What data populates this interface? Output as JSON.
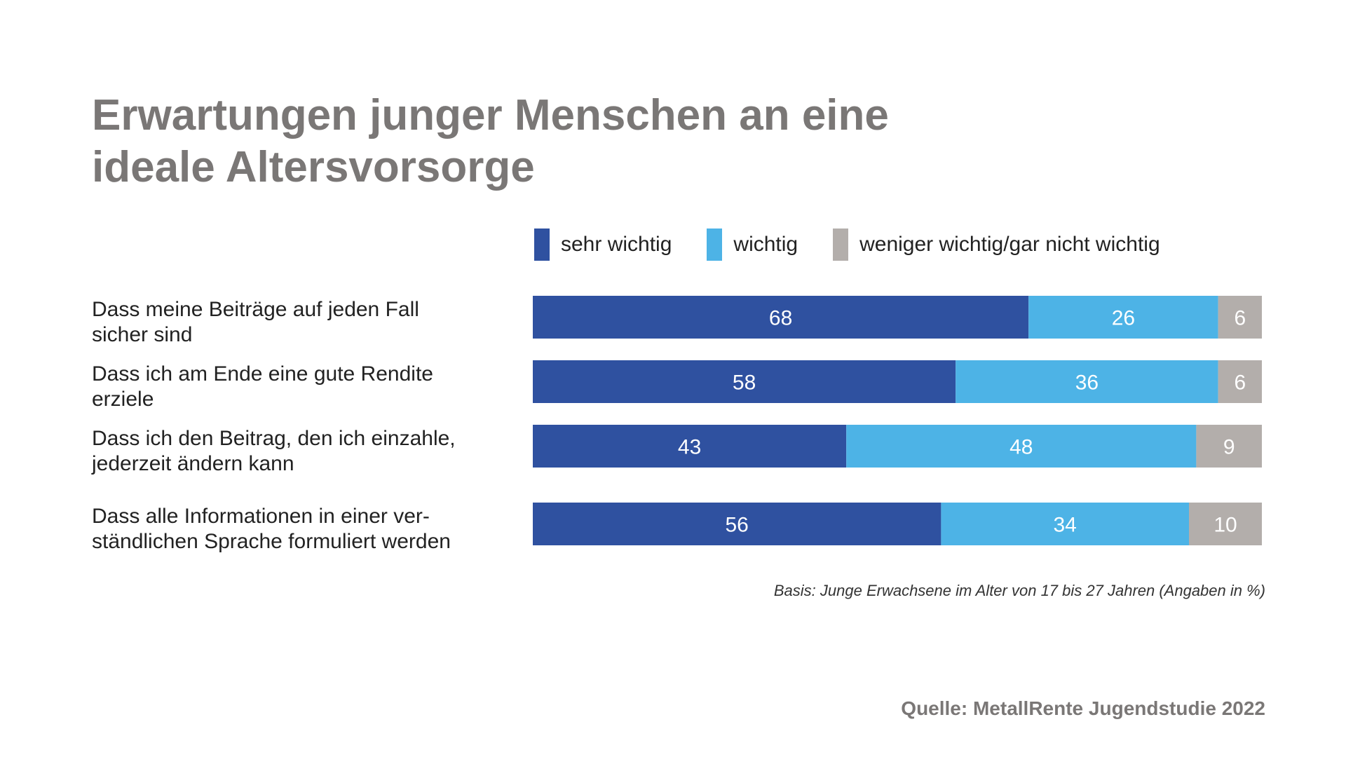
{
  "title_lines": [
    "Erwartungen junger Menschen an eine",
    "ideale Altersvorsorge"
  ],
  "legend": [
    {
      "label": "sehr wichtig",
      "color": "#2f51a0"
    },
    {
      "label": "wichtig",
      "color": "#4db3e6"
    },
    {
      "label": "weniger wichtig/gar nicht wichtig",
      "color": "#b3aeab"
    }
  ],
  "basis_note": "Basis: Junge Erwachsene im Alter von 17 bis 27 Jahren (Angaben in %)",
  "source_note": "Quelle: MetallRente Jugendstudie 2022",
  "chart_data": {
    "type": "bar",
    "orientation": "horizontal",
    "stacked": true,
    "title": "Erwartungen junger Menschen an eine ideale Altersvorsorge",
    "xlim": [
      0,
      100
    ],
    "grid": false,
    "legend_position": "top",
    "categories": [
      [
        "Dass meine Beiträge auf jeden Fall",
        "sicher sind"
      ],
      [
        "Dass ich am Ende eine gute Rendite",
        "erziele"
      ],
      [
        "Dass ich den Beitrag, den ich einzahle,",
        "jederzeit ändern kann"
      ],
      [
        "Dass alle Informationen in einer ver-",
        "ständlichen Sprache formuliert werden"
      ]
    ],
    "series": [
      {
        "name": "sehr wichtig",
        "color": "#2f51a0",
        "values": [
          68,
          58,
          43,
          56
        ]
      },
      {
        "name": "wichtig",
        "color": "#4db3e6",
        "values": [
          26,
          36,
          48,
          34
        ]
      },
      {
        "name": "weniger wichtig/gar nicht wichtig",
        "color": "#b3aeab",
        "values": [
          6,
          6,
          9,
          10
        ]
      }
    ]
  }
}
